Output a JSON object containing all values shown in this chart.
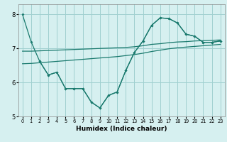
{
  "xlabel": "Humidex (Indice chaleur)",
  "bg_color": "#d6f0f0",
  "grid_color": "#a0d0d0",
  "line_color": "#1a7a6e",
  "xlim": [
    -0.5,
    23.5
  ],
  "ylim": [
    5,
    8.3
  ],
  "yticks": [
    5,
    6,
    7,
    8
  ],
  "xticks": [
    0,
    1,
    2,
    3,
    4,
    5,
    6,
    7,
    8,
    9,
    10,
    11,
    12,
    13,
    14,
    15,
    16,
    17,
    18,
    19,
    20,
    21,
    22,
    23
  ],
  "line1_x": [
    0,
    1,
    2,
    3,
    4,
    5,
    6,
    7,
    8,
    9,
    10,
    11,
    12,
    13,
    14,
    15,
    16,
    17,
    18,
    19,
    20,
    21,
    22,
    23
  ],
  "line1_y": [
    8.0,
    7.2,
    6.62,
    6.22,
    6.3,
    5.82,
    5.82,
    5.82,
    5.42,
    5.25,
    5.62,
    5.72,
    6.35,
    6.88,
    7.22,
    7.68,
    7.9,
    7.88,
    7.75,
    7.42,
    7.36,
    7.18,
    7.18,
    7.22
  ],
  "line2_x": [
    0,
    1,
    2,
    3,
    4,
    5,
    6,
    7,
    8,
    9,
    10,
    11,
    12,
    13,
    14,
    15,
    16,
    17,
    18,
    19,
    20,
    21,
    22,
    23
  ],
  "line2_y": [
    6.92,
    6.92,
    6.93,
    6.94,
    6.95,
    6.96,
    6.97,
    6.98,
    6.99,
    7.0,
    7.01,
    7.02,
    7.03,
    7.05,
    7.08,
    7.12,
    7.14,
    7.17,
    7.19,
    7.2,
    7.22,
    7.23,
    7.24,
    7.25
  ],
  "line3_x": [
    0,
    1,
    2,
    3,
    4,
    5,
    6,
    7,
    8,
    9,
    10,
    11,
    12,
    13,
    14,
    15,
    16,
    17,
    18,
    19,
    20,
    21,
    22,
    23
  ],
  "line3_y": [
    6.55,
    6.56,
    6.58,
    6.6,
    6.62,
    6.64,
    6.66,
    6.68,
    6.7,
    6.72,
    6.74,
    6.76,
    6.79,
    6.82,
    6.86,
    6.91,
    6.95,
    6.99,
    7.02,
    7.04,
    7.06,
    7.08,
    7.1,
    7.12
  ],
  "line4_x": [
    2,
    3,
    4,
    5,
    6,
    7,
    8,
    9,
    10,
    11,
    12,
    13,
    14,
    15,
    16,
    17,
    18,
    19,
    20,
    21,
    22,
    23
  ],
  "line4_y": [
    6.62,
    6.22,
    6.3,
    5.82,
    5.82,
    5.82,
    5.42,
    5.25,
    5.62,
    5.72,
    6.35,
    6.88,
    7.22,
    7.68,
    7.9,
    7.88,
    7.75,
    7.42,
    7.36,
    7.18,
    7.18,
    7.22
  ]
}
